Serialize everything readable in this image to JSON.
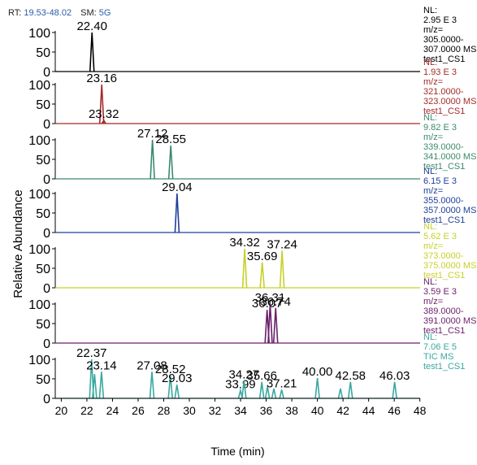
{
  "header": {
    "rt_label": "RT:",
    "rt_value": "19.53-48.02",
    "sm_label": "SM:",
    "sm_value": "5G"
  },
  "chart_data": {
    "type": "line",
    "xlabel": "Time (min)",
    "ylabel": "Relative Abundance",
    "xlim": [
      19.53,
      48.02
    ],
    "ylim": [
      0,
      100
    ],
    "x_ticks": [
      "20",
      "22",
      "24",
      "26",
      "28",
      "30",
      "32",
      "34",
      "36",
      "38",
      "40",
      "42",
      "44",
      "46",
      "48"
    ],
    "y_ticks": [
      "0",
      "50",
      "100"
    ],
    "panels": [
      {
        "color": "#000000",
        "info": [
          "NL:",
          "2.95 E 3",
          "m/z=",
          "305.0000-",
          "307.0000 MS",
          "test1_CS1"
        ],
        "peaks": [
          {
            "rt": 22.4,
            "height": 100,
            "label": "22.40"
          }
        ]
      },
      {
        "color": "#a52a2a",
        "info": [
          "NL:",
          "1.93 E 3",
          "m/z=",
          "321.0000-",
          "323.0000 MS",
          "test1_CS1"
        ],
        "peaks": [
          {
            "rt": 23.16,
            "height": 100,
            "label": "23.16"
          },
          {
            "rt": 23.32,
            "height": 8,
            "label": "23.32"
          }
        ]
      },
      {
        "color": "#3a8a6a",
        "info": [
          "NL:",
          "9.82 E 3",
          "m/z=",
          "339.0000-",
          "341.0000 MS",
          "test1_CS1"
        ],
        "peaks": [
          {
            "rt": 27.12,
            "height": 100,
            "label": "27.12"
          },
          {
            "rt": 28.55,
            "height": 85,
            "label": "28.55"
          }
        ]
      },
      {
        "color": "#1f3f9a",
        "info": [
          "NL:",
          "6.15 E 3",
          "m/z=",
          "355.0000-",
          "357.0000 MS",
          "test1_CS1"
        ],
        "peaks": [
          {
            "rt": 29.04,
            "height": 100,
            "label": "29.04"
          }
        ]
      },
      {
        "color": "#c8d02a",
        "info": [
          "NL:",
          "5.62 E 3",
          "m/z=",
          "373.0000-",
          "375.0000 MS",
          "test1_CS1"
        ],
        "peaks": [
          {
            "rt": 34.32,
            "height": 100,
            "label": "34.32"
          },
          {
            "rt": 35.69,
            "height": 65,
            "label": "35.69"
          },
          {
            "rt": 37.24,
            "height": 95,
            "label": "37.24"
          }
        ]
      },
      {
        "color": "#6a1f6a",
        "info": [
          "NL:",
          "3.59 E 3",
          "m/z=",
          "389.0000-",
          "391.0000 MS",
          "test1_CS1"
        ],
        "peaks": [
          {
            "rt": 36.07,
            "height": 85,
            "label": "36.07"
          },
          {
            "rt": 36.31,
            "height": 100,
            "label": "36.31"
          },
          {
            "rt": 36.74,
            "height": 90,
            "label": "36.74"
          }
        ]
      },
      {
        "color": "#3aa8a0",
        "info": [
          "NL:",
          "7.06 E 5",
          "TIC MS",
          "test1_CS1"
        ],
        "peaks": [
          {
            "rt": 22.37,
            "height": 100,
            "label": "22.37"
          },
          {
            "rt": 22.6,
            "height": 62
          },
          {
            "rt": 23.14,
            "height": 68,
            "label": "23.14"
          },
          {
            "rt": 27.08,
            "height": 68,
            "label": "27.08"
          },
          {
            "rt": 28.52,
            "height": 58,
            "label": "28.52"
          },
          {
            "rt": 29.03,
            "height": 35,
            "label": "29.03"
          },
          {
            "rt": 33.99,
            "height": 20,
            "label": "33.99"
          },
          {
            "rt": 34.27,
            "height": 45,
            "label": "34.27"
          },
          {
            "rt": 35.66,
            "height": 42,
            "label": "35.66"
          },
          {
            "rt": 36.1,
            "height": 30
          },
          {
            "rt": 36.6,
            "height": 25
          },
          {
            "rt": 37.21,
            "height": 22,
            "label": "37.21"
          },
          {
            "rt": 40.0,
            "height": 52,
            "label": "40.00"
          },
          {
            "rt": 41.8,
            "height": 25
          },
          {
            "rt": 42.58,
            "height": 42,
            "label": "42.58"
          },
          {
            "rt": 46.03,
            "height": 42,
            "label": "46.03"
          }
        ]
      }
    ]
  }
}
